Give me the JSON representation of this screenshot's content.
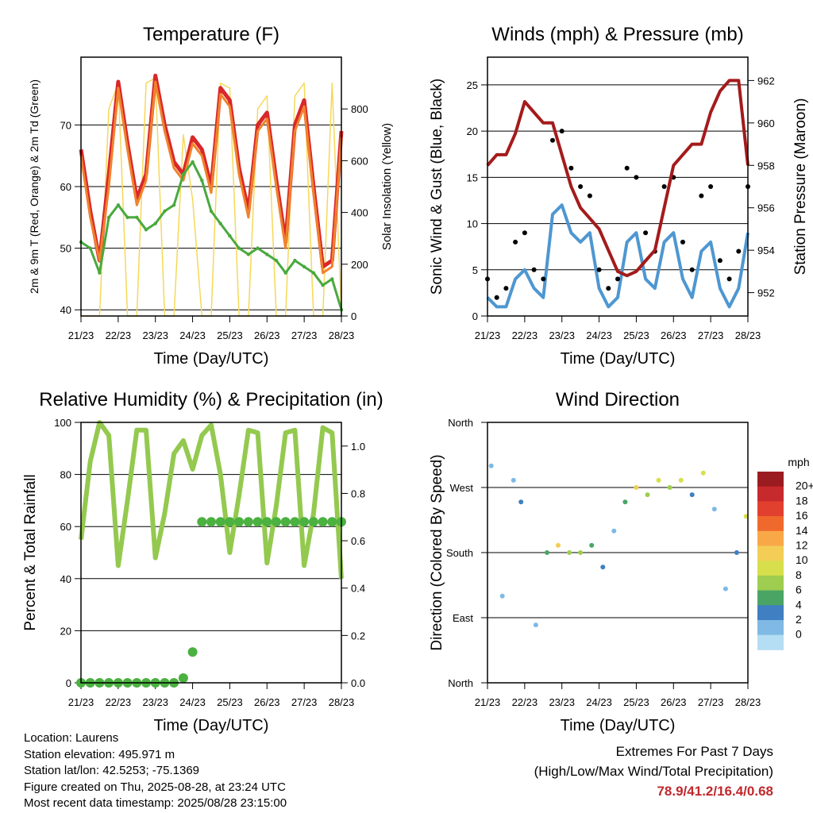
{
  "x_ticks": [
    "21/23",
    "22/23",
    "23/23",
    "24/23",
    "25/23",
    "26/23",
    "27/23",
    "28/23"
  ],
  "info": {
    "location": "Location: Laurens",
    "elevation": "Station elevation: 495.971 m",
    "latlon": "Station lat/lon: 42.5253; -75.1369",
    "created": "Figure created on Thu, 2025-08-28, at 23:24 UTC",
    "recent": "Most recent data timestamp: 2025/08/28 23:15:00"
  },
  "extremes": {
    "title": "Extremes For Past 7 Days",
    "subtitle": "(High/Low/Max Wind/Total Precipitation)",
    "values": "78.9/41.2/16.4/0.68"
  },
  "colors": {
    "temp2m": "#d9272a",
    "temp9m": "#f0832c",
    "dewpoint": "#49a93e",
    "solar": "#f6d85a",
    "wind": "#4e97d1",
    "gust": "#000000",
    "pressure": "#a41b1b",
    "rh": "#94c94f",
    "precip": "#4bb140"
  },
  "chart_data": [
    {
      "type": "line",
      "title": "Temperature (F)",
      "xlabel": "Time (Day/UTC)",
      "ylabel": "2m & 9m T (Red, Orange) & 2m Td (Green)",
      "ylabel_right": "Solar Insolation (Yellow)",
      "x": [
        21,
        21.25,
        21.5,
        21.75,
        22,
        22.25,
        22.5,
        22.75,
        23,
        23.25,
        23.5,
        23.75,
        24,
        24.25,
        24.5,
        24.75,
        25,
        25.25,
        25.5,
        25.75,
        26,
        26.25,
        26.5,
        26.75,
        27,
        27.25,
        27.5,
        27.75,
        28
      ],
      "ylim": [
        39,
        81
      ],
      "yticks": [
        40,
        50,
        60,
        70
      ],
      "y2lim": [
        0,
        1000
      ],
      "y2ticks": [
        0,
        200,
        400,
        600,
        800
      ],
      "series": [
        {
          "name": "2m T",
          "axis": "left",
          "values": [
            66,
            56,
            48,
            62,
            77,
            67,
            58,
            62,
            78,
            70,
            64,
            62,
            68,
            66,
            60,
            76,
            74,
            63,
            56,
            70,
            72,
            61,
            51,
            70,
            74,
            60,
            47,
            48,
            69
          ]
        },
        {
          "name": "9m T",
          "axis": "left",
          "values": [
            65,
            55,
            48,
            60,
            76,
            66,
            57,
            61,
            77,
            69,
            63,
            61,
            67,
            65,
            59,
            75,
            73,
            62,
            55,
            69,
            71,
            60,
            50,
            69,
            73,
            59,
            46,
            47,
            68
          ]
        },
        {
          "name": "2m Td",
          "axis": "left",
          "values": [
            51,
            50,
            46,
            55,
            57,
            55,
            55,
            53,
            54,
            56,
            57,
            62,
            64,
            61,
            56,
            54,
            52,
            50,
            49,
            50,
            49,
            48,
            46,
            48,
            47,
            46,
            44,
            45,
            40
          ]
        },
        {
          "name": "Solar",
          "axis": "right",
          "values": [
            0,
            0,
            0,
            800,
            900,
            0,
            0,
            900,
            920,
            0,
            0,
            700,
            450,
            0,
            0,
            900,
            880,
            0,
            0,
            800,
            850,
            0,
            0,
            850,
            900,
            0,
            0,
            900,
            0
          ]
        }
      ]
    },
    {
      "type": "line",
      "title": "Winds (mph) & Pressure (mb)",
      "xlabel": "Time (Day/UTC)",
      "ylabel": "Sonic Wind & Gust (Blue, Black)",
      "ylabel_right": "Station Pressure (Maroon)",
      "x": [
        21,
        21.25,
        21.5,
        21.75,
        22,
        22.25,
        22.5,
        22.75,
        23,
        23.25,
        23.5,
        23.75,
        24,
        24.25,
        24.5,
        24.75,
        25,
        25.25,
        25.5,
        25.75,
        26,
        26.25,
        26.5,
        26.75,
        27,
        27.25,
        27.5,
        27.75,
        28
      ],
      "ylim": [
        0,
        28
      ],
      "yticks": [
        0,
        5,
        10,
        15,
        20,
        25
      ],
      "y2lim": [
        950.9,
        963.1
      ],
      "y2ticks": [
        952,
        954,
        956,
        958,
        960,
        962
      ],
      "series": [
        {
          "name": "Wind",
          "axis": "left",
          "values": [
            2,
            1,
            1,
            4,
            5,
            3,
            2,
            11,
            12,
            9,
            8,
            9,
            3,
            1,
            2,
            8,
            9,
            4,
            3,
            8,
            9,
            4,
            2,
            7,
            8,
            3,
            1,
            3,
            9
          ]
        },
        {
          "name": "Gust",
          "axis": "left",
          "values": [
            4,
            2,
            3,
            8,
            9,
            5,
            4,
            19,
            20,
            16,
            14,
            13,
            5,
            3,
            4,
            16,
            15,
            9,
            7,
            14,
            15,
            8,
            5,
            13,
            14,
            6,
            4,
            7,
            14
          ]
        },
        {
          "name": "Pressure",
          "axis": "right",
          "values": [
            958,
            958.5,
            958.5,
            959.5,
            961,
            960.5,
            960,
            960,
            958.5,
            957,
            956,
            955.5,
            955,
            954,
            953,
            952.8,
            953,
            953.5,
            954,
            956,
            958,
            958.5,
            959,
            959,
            960.5,
            961.5,
            962,
            962,
            958
          ]
        }
      ]
    },
    {
      "type": "line",
      "title": "Relative Humidity (%) & Precipitation (in)",
      "xlabel": "Time (Day/UTC)",
      "ylabel": "Percent & Total Rainfall",
      "x": [
        21,
        21.25,
        21.5,
        21.75,
        22,
        22.25,
        22.5,
        22.75,
        23,
        23.25,
        23.5,
        23.75,
        24,
        24.25,
        24.5,
        24.75,
        25,
        25.25,
        25.5,
        25.75,
        26,
        26.25,
        26.5,
        26.75,
        27,
        27.25,
        27.5,
        27.75,
        28
      ],
      "ylim": [
        0,
        100
      ],
      "yticks": [
        0,
        20,
        40,
        60,
        80,
        100
      ],
      "y2lim": [
        0,
        1.1
      ],
      "y2ticks": [
        "0.0",
        "0.2",
        "0.4",
        "0.6",
        "0.8",
        "1.0"
      ],
      "series": [
        {
          "name": "RH",
          "axis": "left",
          "values": [
            55,
            85,
            100,
            95,
            45,
            70,
            97,
            97,
            48,
            65,
            88,
            93,
            82,
            95,
            99,
            80,
            50,
            72,
            97,
            96,
            46,
            68,
            96,
            97,
            45,
            65,
            98,
            96,
            40
          ]
        },
        {
          "name": "Precip",
          "axis": "right",
          "values": [
            0,
            0,
            0,
            0,
            0,
            0,
            0,
            0,
            0,
            0,
            0,
            0.02,
            0.13,
            0.68,
            0.68,
            0.68,
            0.68,
            0.68,
            0.68,
            0.68,
            0.68,
            0.68,
            0.68,
            0.68,
            0.68,
            0.68,
            0.68,
            0.68,
            0.68
          ]
        }
      ]
    },
    {
      "type": "scatter",
      "title": "Wind Direction",
      "xlabel": "Time (Day/UTC)",
      "ylabel": "Direction (Colored By Speed)",
      "yticks": [
        "North",
        "East",
        "South",
        "West",
        "North"
      ],
      "ylim": [
        0,
        360
      ],
      "colorbar_title": "mph",
      "colorbar_labels": [
        "20+",
        "18",
        "16",
        "14",
        "12",
        "10",
        "8",
        "6",
        "4",
        "2",
        "0"
      ],
      "colorbar_colors": [
        "#9b1c20",
        "#c72a2d",
        "#e2402e",
        "#f0692c",
        "#f9a848",
        "#f3cd55",
        "#d7df4c",
        "#9fcd4f",
        "#4aa565",
        "#3f7fc2",
        "#7fb9e4",
        "#b5ddf3"
      ],
      "x": [
        21.1,
        21.4,
        21.7,
        21.9,
        22.3,
        22.6,
        22.9,
        23.2,
        23.5,
        23.8,
        24.1,
        24.4,
        24.7,
        25.0,
        25.3,
        25.6,
        25.9,
        26.2,
        26.5,
        26.8,
        27.1,
        27.4,
        27.7,
        27.95
      ],
      "values": [
        300,
        120,
        280,
        250,
        80,
        180,
        190,
        180,
        180,
        190,
        160,
        210,
        250,
        270,
        260,
        280,
        270,
        280,
        260,
        290,
        240,
        130,
        180,
        230
      ],
      "speed": [
        1,
        1,
        2,
        3,
        1,
        5,
        11,
        8,
        7,
        6,
        3,
        2,
        6,
        11,
        7,
        10,
        8,
        9,
        3,
        10,
        1,
        2,
        4,
        9
      ]
    }
  ]
}
